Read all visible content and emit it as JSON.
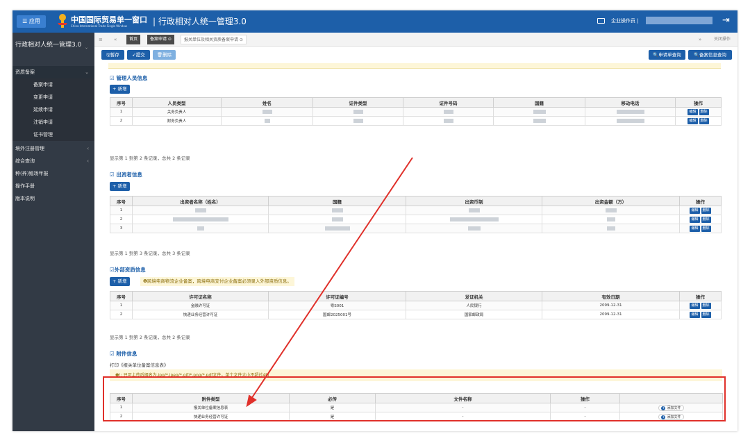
{
  "header": {
    "menu_label": "☰ 应用",
    "brand_main": "中国国际贸易单一窗口",
    "brand_sub": "China International Trade Single Window",
    "app_title": "| 行政相对人统一管理3.0",
    "user_label": "企业操作员 |",
    "icons": [
      "mail-icon",
      "logout-icon",
      "emblem-logo"
    ]
  },
  "sidebar": {
    "title": "行政相对人统一管理3.0",
    "items": [
      {
        "label": "资质备案",
        "chev": "⌄"
      },
      {
        "label": "备案申请"
      },
      {
        "label": "变更申请"
      },
      {
        "label": "延续申请"
      },
      {
        "label": "注销申请"
      },
      {
        "label": "证书管理"
      },
      {
        "label": "境外注册管理",
        "chev": "‹"
      },
      {
        "label": "综合查询",
        "chev": "‹"
      },
      {
        "label": "种(养)殖场年报"
      },
      {
        "label": "操作手册"
      },
      {
        "label": "版本说明"
      }
    ]
  },
  "tabs": {
    "home": "首页",
    "t1": "备案申请 ⊙",
    "t2": "报关单位及相关资质备案申请 ⊙",
    "close_ops": "关闭操作"
  },
  "toolbar": {
    "save": "🖫暂存",
    "submit": "➶提交",
    "delete": "🗑删除",
    "query_apply": "🔍申请单查询",
    "query_record": "🔍备案信息查询"
  },
  "managers": {
    "title": "管理人员信息",
    "add": "+ 新增",
    "headers": [
      "序号",
      "人员类型",
      "姓名",
      "证件类型",
      "证件号码",
      "国籍",
      "移动电话",
      "操作"
    ],
    "rows": [
      {
        "no": "1",
        "type": "关务负责人"
      },
      {
        "no": "2",
        "type": "财务负责人"
      }
    ],
    "summary": "显示第 1 到第 2 条记录，总共 2 条记录"
  },
  "investors": {
    "title": "出资者信息",
    "add": "+ 新增",
    "headers": [
      "序号",
      "出资者名称（姓名）",
      "国籍",
      "出资币制",
      "出资金额（万）",
      "操作"
    ],
    "rows": [
      {
        "no": "1"
      },
      {
        "no": "2"
      },
      {
        "no": "3"
      }
    ],
    "summary": "显示第 1 到第 3 条记录，总共 3 条记录"
  },
  "external": {
    "title": "外部资质信息",
    "add": "+ 新增",
    "warn": "❶跨境电商物流企业备案，跨境电商支付企业备案必须录入外部资质信息。",
    "headers": [
      "序号",
      "许可证名称",
      "许可证编号",
      "发证机关",
      "有效日期",
      "操作"
    ],
    "rows": [
      {
        "no": "1",
        "name": "金融许可证",
        "code": "粤S001",
        "org": "人民银行",
        "date": "2099-12-31"
      },
      {
        "no": "2",
        "name": "快递业务经营许可证",
        "code": "国邮2025001号",
        "org": "国家邮政局",
        "date": "2099-12-31"
      }
    ],
    "summary": "显示第 1 到第 2 条记录，总共 2 条记录"
  },
  "attachments": {
    "title": "附件信息",
    "print": "打印《报关单位备案信息表》",
    "warn": "❶!: 只可上传后缀名为.jpg/*.jpeg/*.gif/*.png/*.pdf文件，单个文件大小不超过4M",
    "headers": [
      "序号",
      "附件类型",
      "必传",
      "文件名称",
      "操作"
    ],
    "rows": [
      {
        "no": "1",
        "type": "报关单位备案信息表",
        "required": "是",
        "file": "-",
        "op": "-",
        "btn": "添加文件"
      },
      {
        "no": "2",
        "type": "快递业务经营许可证",
        "required": "是",
        "file": "-",
        "op": "-",
        "btn": "添加文件"
      }
    ]
  },
  "row_buttons": {
    "edit": "编辑",
    "delete": "删除"
  },
  "colors": {
    "primary": "#1d5fa9",
    "sidebar": "#323a45",
    "highlight": "#e0302a"
  }
}
